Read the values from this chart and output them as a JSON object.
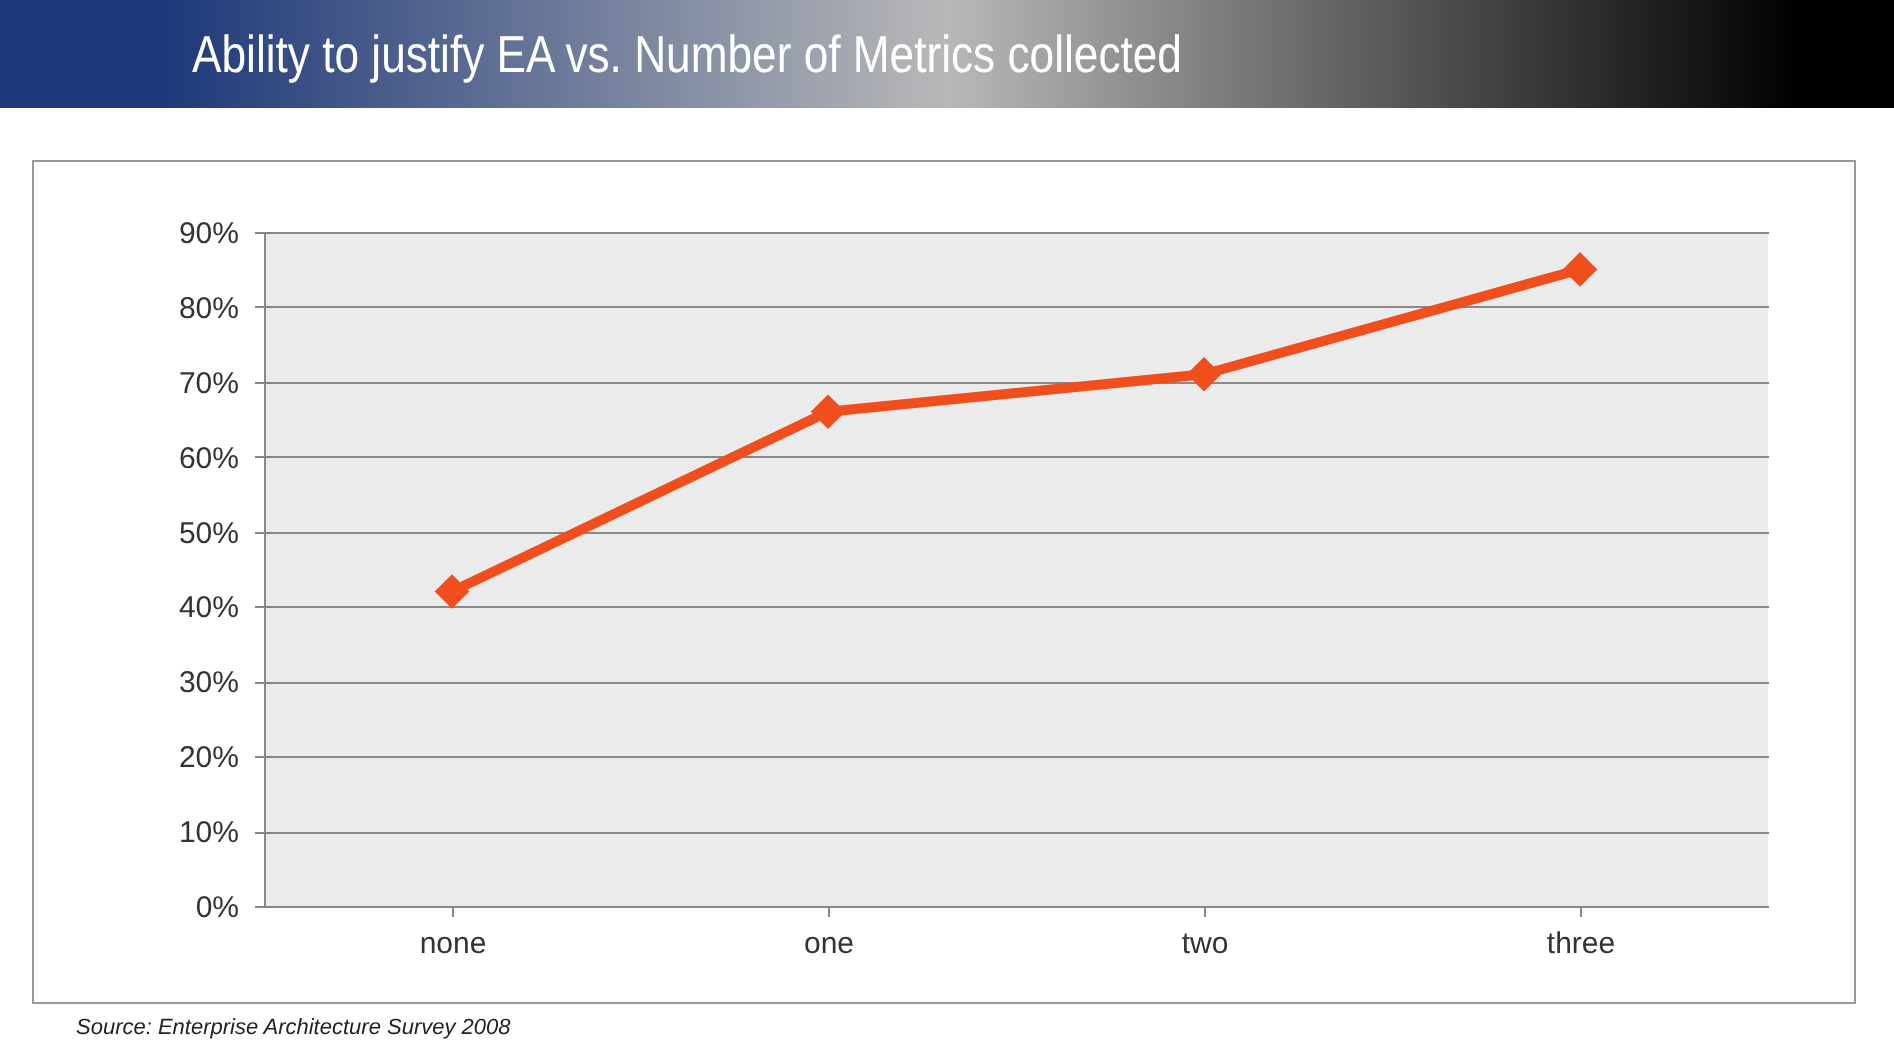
{
  "chart_data": {
    "type": "line",
    "title": "Ability to justify EA vs. Number of Metrics collected",
    "categories": [
      "none",
      "one",
      "two",
      "three"
    ],
    "series": [
      {
        "color": "#f04e1c",
        "values": [
          42,
          66,
          71,
          85
        ]
      }
    ],
    "ylim": [
      0,
      90
    ],
    "yticks": [
      {
        "value": 0,
        "label": "0%"
      },
      {
        "value": 10,
        "label": "10%"
      },
      {
        "value": 20,
        "label": "20%"
      },
      {
        "value": 30,
        "label": "30%"
      },
      {
        "value": 40,
        "label": "40%"
      },
      {
        "value": 50,
        "label": "50%"
      },
      {
        "value": 60,
        "label": "60%"
      },
      {
        "value": 70,
        "label": "70%"
      },
      {
        "value": 80,
        "label": "80%"
      },
      {
        "value": 90,
        "label": "90%"
      }
    ],
    "grid": "y",
    "marker": "diamond",
    "line_style": "solid",
    "annotations": [
      "Source: Enterprise Architecture Survey 2008"
    ]
  }
}
